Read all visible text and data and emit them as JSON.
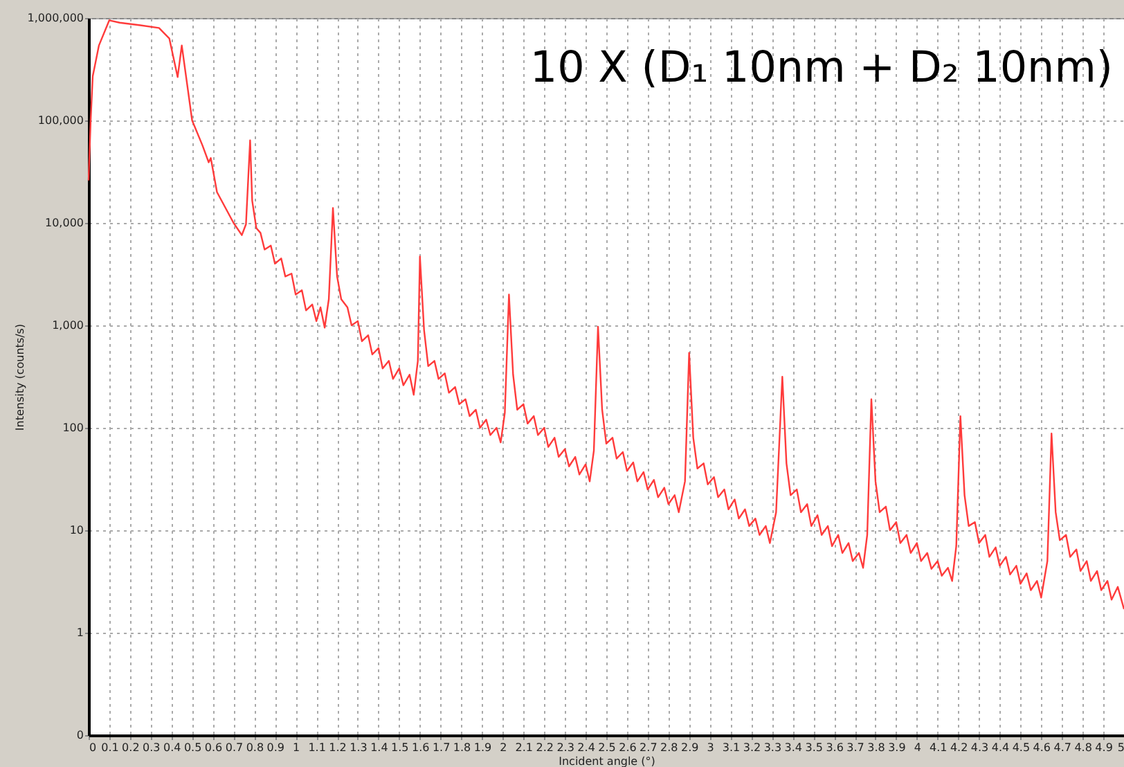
{
  "chart_data": {
    "type": "line",
    "xlabel": "Incident angle (°)",
    "ylabel": "Intensity (counts/s)",
    "annotations": [
      "10 X (D₁ 10nm + D₂ 10nm)"
    ],
    "series": [
      {
        "color": "#ff3b3b",
        "x": [
          0,
          0.01,
          0.02,
          0.05,
          0.1,
          0.15,
          0.25,
          0.34,
          0.39,
          0.43,
          0.45,
          0.5,
          0.55,
          0.58,
          0.59,
          0.62,
          0.7,
          0.74,
          0.76,
          0.78,
          0.79,
          0.81,
          0.83,
          0.85,
          0.88,
          0.9,
          0.93,
          0.95,
          0.98,
          1.0,
          1.03,
          1.05,
          1.08,
          1.1,
          1.12,
          1.14,
          1.16,
          1.18,
          1.2,
          1.22,
          1.25,
          1.27,
          1.3,
          1.32,
          1.35,
          1.37,
          1.4,
          1.42,
          1.45,
          1.47,
          1.5,
          1.52,
          1.55,
          1.57,
          1.59,
          1.6,
          1.62,
          1.64,
          1.67,
          1.69,
          1.72,
          1.74,
          1.77,
          1.79,
          1.82,
          1.84,
          1.87,
          1.89,
          1.92,
          1.94,
          1.97,
          1.99,
          2.01,
          2.03,
          2.05,
          2.07,
          2.1,
          2.12,
          2.15,
          2.17,
          2.2,
          2.22,
          2.25,
          2.27,
          2.3,
          2.32,
          2.35,
          2.37,
          2.4,
          2.42,
          2.44,
          2.46,
          2.48,
          2.5,
          2.53,
          2.55,
          2.58,
          2.6,
          2.63,
          2.65,
          2.68,
          2.7,
          2.73,
          2.75,
          2.78,
          2.8,
          2.83,
          2.85,
          2.88,
          2.9,
          2.92,
          2.94,
          2.97,
          2.99,
          3.02,
          3.04,
          3.07,
          3.09,
          3.12,
          3.14,
          3.17,
          3.19,
          3.22,
          3.24,
          3.27,
          3.29,
          3.32,
          3.35,
          3.37,
          3.39,
          3.42,
          3.44,
          3.47,
          3.49,
          3.52,
          3.54,
          3.57,
          3.59,
          3.62,
          3.64,
          3.67,
          3.69,
          3.72,
          3.74,
          3.76,
          3.78,
          3.8,
          3.82,
          3.85,
          3.87,
          3.9,
          3.92,
          3.95,
          3.97,
          4.0,
          4.02,
          4.05,
          4.07,
          4.1,
          4.12,
          4.15,
          4.17,
          4.19,
          4.21,
          4.23,
          4.25,
          4.28,
          4.3,
          4.33,
          4.35,
          4.38,
          4.4,
          4.43,
          4.45,
          4.48,
          4.5,
          4.53,
          4.55,
          4.58,
          4.6,
          4.63,
          4.65,
          4.67,
          4.69,
          4.72,
          4.74,
          4.77,
          4.79,
          4.82,
          4.84,
          4.87,
          4.89,
          4.92,
          4.94,
          4.97,
          5.0
        ],
        "values": [
          26000,
          100000,
          270000,
          540000,
          950000,
          900000,
          850000,
          800000,
          630000,
          265000,
          540000,
          100000,
          57000,
          39000,
          43000,
          20000,
          10000,
          7600,
          9700,
          64000,
          16500,
          8900,
          8000,
          5500,
          6000,
          4000,
          4500,
          3000,
          3200,
          2000,
          2200,
          1400,
          1600,
          1100,
          1500,
          950,
          1800,
          14000,
          3000,
          1800,
          1500,
          1000,
          1100,
          700,
          800,
          520,
          600,
          380,
          450,
          300,
          380,
          260,
          330,
          210,
          450,
          4700,
          900,
          400,
          450,
          300,
          340,
          220,
          250,
          170,
          190,
          130,
          150,
          100,
          120,
          85,
          100,
          72,
          140,
          2000,
          330,
          150,
          170,
          110,
          130,
          85,
          100,
          65,
          80,
          52,
          62,
          42,
          52,
          35,
          44,
          30,
          60,
          970,
          150,
          70,
          80,
          50,
          58,
          38,
          46,
          30,
          37,
          25,
          31,
          21,
          26,
          18,
          22,
          15,
          30,
          540,
          80,
          40,
          45,
          28,
          33,
          21,
          25,
          16,
          20,
          13,
          16,
          11,
          13,
          9,
          11,
          7.5,
          15,
          315,
          45,
          22,
          25,
          15,
          18,
          11,
          14,
          9,
          11,
          7,
          9,
          6,
          7.5,
          5,
          6,
          4.3,
          9,
          190,
          30,
          15,
          17,
          10,
          12,
          7.5,
          9,
          6,
          7.5,
          5,
          6,
          4.2,
          5,
          3.6,
          4.3,
          3.2,
          7,
          130,
          22,
          11,
          12,
          7.5,
          9,
          5.5,
          6.8,
          4.5,
          5.5,
          3.7,
          4.5,
          3,
          3.8,
          2.6,
          3.2,
          2.2,
          5,
          88,
          15,
          8,
          9,
          5.5,
          6.5,
          4,
          5,
          3.2,
          4,
          2.6,
          3.2,
          2.1,
          2.8,
          1.7
        ]
      }
    ],
    "log": "y",
    "grid": true,
    "line_style": "solid",
    "marker": "none",
    "xlim": [
      0,
      5.0
    ],
    "xticks": [
      0,
      0.1,
      0.2,
      0.3,
      0.4,
      0.5,
      0.6,
      0.7,
      0.8,
      0.9,
      1,
      1.1,
      1.2,
      1.3,
      1.4,
      1.5,
      1.6,
      1.7,
      1.8,
      1.9,
      2,
      2.1,
      2.2,
      2.3,
      2.4,
      2.5,
      2.6,
      2.7,
      2.8,
      2.9,
      3,
      3.1,
      3.2,
      3.3,
      3.4,
      3.5,
      3.6,
      3.7,
      3.8,
      3.9,
      4,
      4.1,
      4.2,
      4.3,
      4.4,
      4.5,
      4.6,
      4.7,
      4.8,
      4.9,
      5
    ],
    "ylim": [
      0.1,
      1000000
    ],
    "yticks": [
      {
        "value": 0.1,
        "label": "0"
      },
      1,
      10,
      100,
      {
        "value": 1000,
        "label": "1,000"
      },
      {
        "value": 10000,
        "label": "10,000"
      },
      {
        "value": 100000,
        "label": "100,000"
      },
      {
        "value": 1000000,
        "label": "1,000,000"
      }
    ]
  }
}
